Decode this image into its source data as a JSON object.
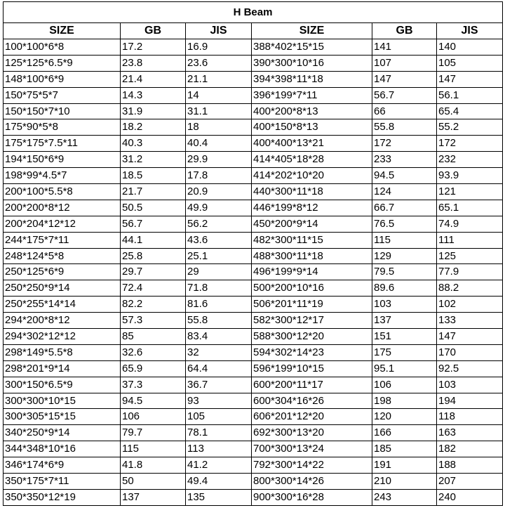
{
  "title": "H Beam",
  "headers": [
    "SIZE",
    "GB",
    "JIS",
    "SIZE",
    "GB",
    "JIS"
  ],
  "rows": [
    [
      "100*100*6*8",
      "17.2",
      "16.9",
      "388*402*15*15",
      "141",
      "140"
    ],
    [
      "125*125*6.5*9",
      "23.8",
      "23.6",
      "390*300*10*16",
      "107",
      "105"
    ],
    [
      "148*100*6*9",
      "21.4",
      "21.1",
      "394*398*11*18",
      "147",
      "147"
    ],
    [
      "150*75*5*7",
      "14.3",
      "14",
      "396*199*7*11",
      "56.7",
      "56.1"
    ],
    [
      "150*150*7*10",
      "31.9",
      "31.1",
      "400*200*8*13",
      "66",
      "65.4"
    ],
    [
      "175*90*5*8",
      "18.2",
      "18",
      "400*150*8*13",
      "55.8",
      "55.2"
    ],
    [
      "175*175*7.5*11",
      "40.3",
      "40.4",
      "400*400*13*21",
      "172",
      "172"
    ],
    [
      "194*150*6*9",
      "31.2",
      "29.9",
      "414*405*18*28",
      "233",
      "232"
    ],
    [
      "198*99*4.5*7",
      "18.5",
      "17.8",
      "414*202*10*20",
      "94.5",
      "93.9"
    ],
    [
      "200*100*5.5*8",
      "21.7",
      "20.9",
      "440*300*11*18",
      "124",
      "121"
    ],
    [
      "200*200*8*12",
      "50.5",
      "49.9",
      "446*199*8*12",
      "66.7",
      "65.1"
    ],
    [
      "200*204*12*12",
      "56.7",
      "56.2",
      "450*200*9*14",
      "76.5",
      "74.9"
    ],
    [
      "244*175*7*11",
      "44.1",
      "43.6",
      "482*300*11*15",
      "115",
      "111"
    ],
    [
      "248*124*5*8",
      "25.8",
      "25.1",
      "488*300*11*18",
      "129",
      "125"
    ],
    [
      "250*125*6*9",
      "29.7",
      "29",
      "496*199*9*14",
      "79.5",
      "77.9"
    ],
    [
      "250*250*9*14",
      "72.4",
      "71.8",
      "500*200*10*16",
      "89.6",
      "88.2"
    ],
    [
      "250*255*14*14",
      "82.2",
      "81.6",
      "506*201*11*19",
      "103",
      "102"
    ],
    [
      "294*200*8*12",
      "57.3",
      "55.8",
      "582*300*12*17",
      "137",
      "133"
    ],
    [
      "294*302*12*12",
      "85",
      "83.4",
      "588*300*12*20",
      "151",
      "147"
    ],
    [
      "298*149*5.5*8",
      "32.6",
      "32",
      "594*302*14*23",
      "175",
      "170"
    ],
    [
      "298*201*9*14",
      "65.9",
      "64.4",
      "596*199*10*15",
      "95.1",
      "92.5"
    ],
    [
      "300*150*6.5*9",
      "37.3",
      "36.7",
      "600*200*11*17",
      "106",
      "103"
    ],
    [
      "300*300*10*15",
      "94.5",
      "93",
      "600*304*16*26",
      "198",
      "194"
    ],
    [
      "300*305*15*15",
      "106",
      "105",
      "606*201*12*20",
      "120",
      "118"
    ],
    [
      "340*250*9*14",
      "79.7",
      "78.1",
      "692*300*13*20",
      "166",
      "163"
    ],
    [
      "344*348*10*16",
      "115",
      "113",
      "700*300*13*24",
      "185",
      "182"
    ],
    [
      "346*174*6*9",
      "41.8",
      "41.2",
      "792*300*14*22",
      "191",
      "188"
    ],
    [
      "350*175*7*11",
      "50",
      "49.4",
      "800*300*14*26",
      "210",
      "207"
    ],
    [
      "350*350*12*19",
      "137",
      "135",
      "900*300*16*28",
      "243",
      "240"
    ]
  ]
}
